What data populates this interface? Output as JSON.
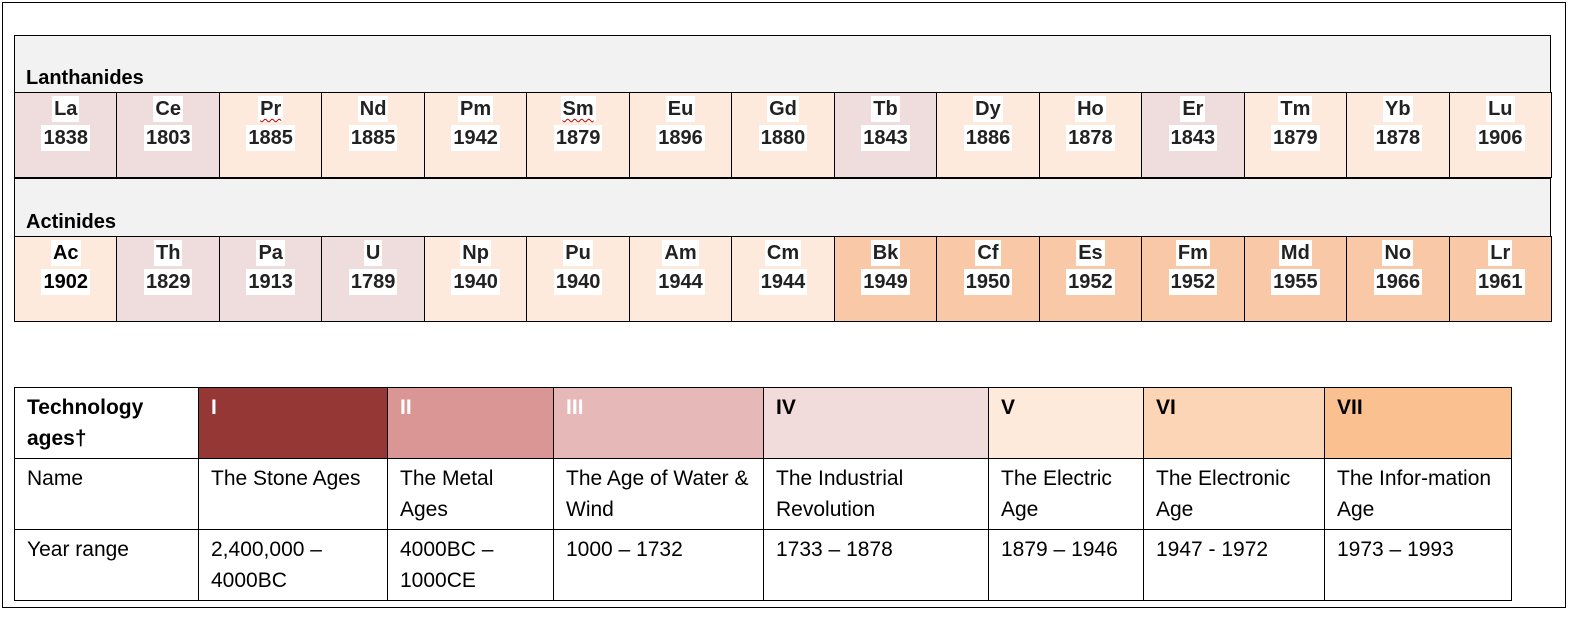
{
  "lanthanides": {
    "label": "Lanthanides",
    "elements": [
      {
        "symbol": "La",
        "year": "1838",
        "tone": "t1"
      },
      {
        "symbol": "Ce",
        "year": "1803",
        "tone": "t1"
      },
      {
        "symbol": "Pr",
        "year": "1885",
        "tone": "t2"
      },
      {
        "symbol": "Nd",
        "year": "1885",
        "tone": "t2"
      },
      {
        "symbol": "Pm",
        "year": "1942",
        "tone": "t2"
      },
      {
        "symbol": "Sm",
        "year": "1879",
        "tone": "t2"
      },
      {
        "symbol": "Eu",
        "year": "1896",
        "tone": "t2"
      },
      {
        "symbol": "Gd",
        "year": "1880",
        "tone": "t2"
      },
      {
        "symbol": "Tb",
        "year": "1843",
        "tone": "t1"
      },
      {
        "symbol": "Dy",
        "year": "1886",
        "tone": "t2"
      },
      {
        "symbol": "Ho",
        "year": "1878",
        "tone": "t2"
      },
      {
        "symbol": "Er",
        "year": "1843",
        "tone": "t1"
      },
      {
        "symbol": "Tm",
        "year": "1879",
        "tone": "t2"
      },
      {
        "symbol": "Yb",
        "year": "1878",
        "tone": "t2"
      },
      {
        "symbol": "Lu",
        "year": "1906",
        "tone": "t2"
      }
    ]
  },
  "actinides": {
    "label": "Actinides",
    "elements": [
      {
        "symbol": "Ac",
        "year": "1902",
        "tone": "t2"
      },
      {
        "symbol": "Th",
        "year": "1829",
        "tone": "t1"
      },
      {
        "symbol": "Pa",
        "year": "1913",
        "tone": "t1"
      },
      {
        "symbol": "U",
        "year": "1789",
        "tone": "t1"
      },
      {
        "symbol": "Np",
        "year": "1940",
        "tone": "t2"
      },
      {
        "symbol": "Pu",
        "year": "1940",
        "tone": "t2"
      },
      {
        "symbol": "Am",
        "year": "1944",
        "tone": "t2"
      },
      {
        "symbol": "Cm",
        "year": "1944",
        "tone": "t2"
      },
      {
        "symbol": "Bk",
        "year": "1949",
        "tone": "t3"
      },
      {
        "symbol": "Cf",
        "year": "1950",
        "tone": "t3"
      },
      {
        "symbol": "Es",
        "year": "1952",
        "tone": "t3"
      },
      {
        "symbol": "Fm",
        "year": "1952",
        "tone": "t3"
      },
      {
        "symbol": "Md",
        "year": "1955",
        "tone": "t3"
      },
      {
        "symbol": "No",
        "year": "1966",
        "tone": "t3"
      },
      {
        "symbol": "Lr",
        "year": "1961",
        "tone": "t3"
      }
    ]
  },
  "tech_table": {
    "header_label": "Technology ages†",
    "row_name_label": "Name",
    "row_years_label": "Year range",
    "ages": [
      {
        "numeral": "I",
        "name": "The Stone Ages",
        "years": "2,400,000 – 4000BC",
        "color": "#953735"
      },
      {
        "numeral": "II",
        "name": "The Metal Ages",
        "years": "4000BC – 1000CE",
        "color": "#d99694"
      },
      {
        "numeral": "III",
        "name": "The Age of Water & Wind",
        "years": "1000 – 1732",
        "color": "#e6b9b8"
      },
      {
        "numeral": "IV",
        "name": "The Industrial Revolution",
        "years": "1733 – 1878",
        "color": "#f2dcdb"
      },
      {
        "numeral": "V",
        "name": "The Electric Age",
        "years": "1879 – 1946",
        "color": "#fdeada"
      },
      {
        "numeral": "VI",
        "name": "The Electronic Age",
        "years": "1947 - 1972",
        "color": "#fbd5b5"
      },
      {
        "numeral": "VII",
        "name": "The Infor-mation Age",
        "years": "1973 – 1993",
        "color": "#fac090"
      }
    ]
  }
}
